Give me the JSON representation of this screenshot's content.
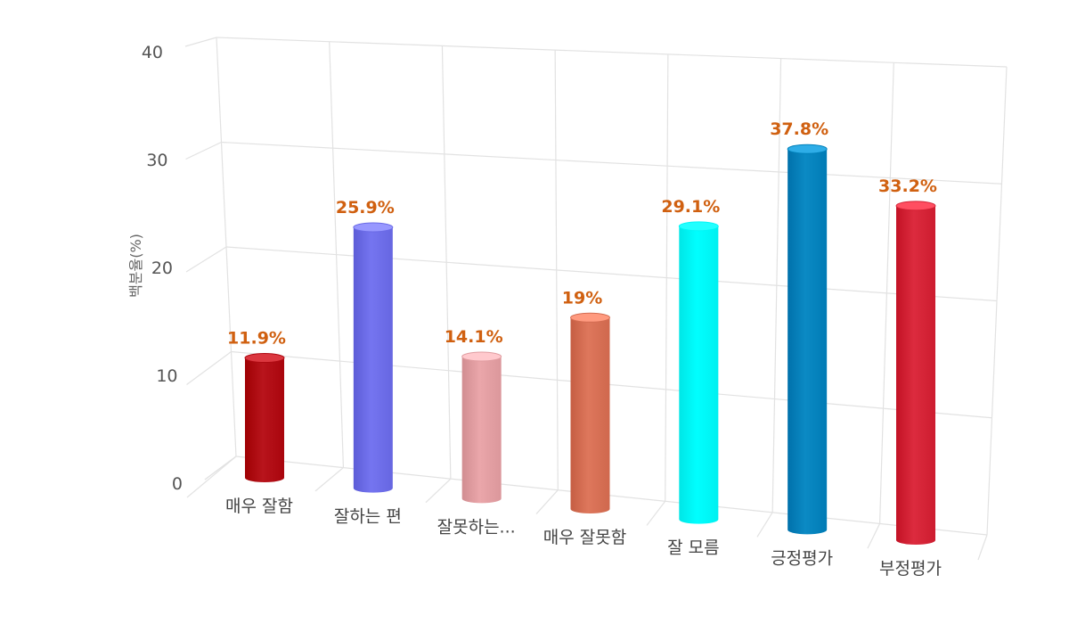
{
  "chart_data": {
    "type": "bar",
    "style": "3d-cylinder",
    "categories": [
      "매우 잘함",
      "잘하는 편",
      "잘못하는...",
      "매우 잘못함",
      "잘 모름",
      "긍정평가",
      "부정평가"
    ],
    "values": [
      11.9,
      25.9,
      14.1,
      19,
      29.1,
      37.8,
      33.2
    ],
    "value_labels": [
      "11.9%",
      "25.9%",
      "14.1%",
      "19%",
      "29.1%",
      "37.8%",
      "33.2%"
    ],
    "colors": [
      "#b8141c",
      "#7575f0",
      "#eaa6aa",
      "#de775c",
      "#00ffff",
      "#0b8ac4",
      "#dc2b3e"
    ],
    "title": "",
    "xlabel": "",
    "ylabel": "백분율(%)",
    "ylim": [
      0,
      40
    ],
    "yticks": [
      "0",
      "10",
      "20",
      "30",
      "40"
    ],
    "grid": true,
    "legend": "none"
  }
}
